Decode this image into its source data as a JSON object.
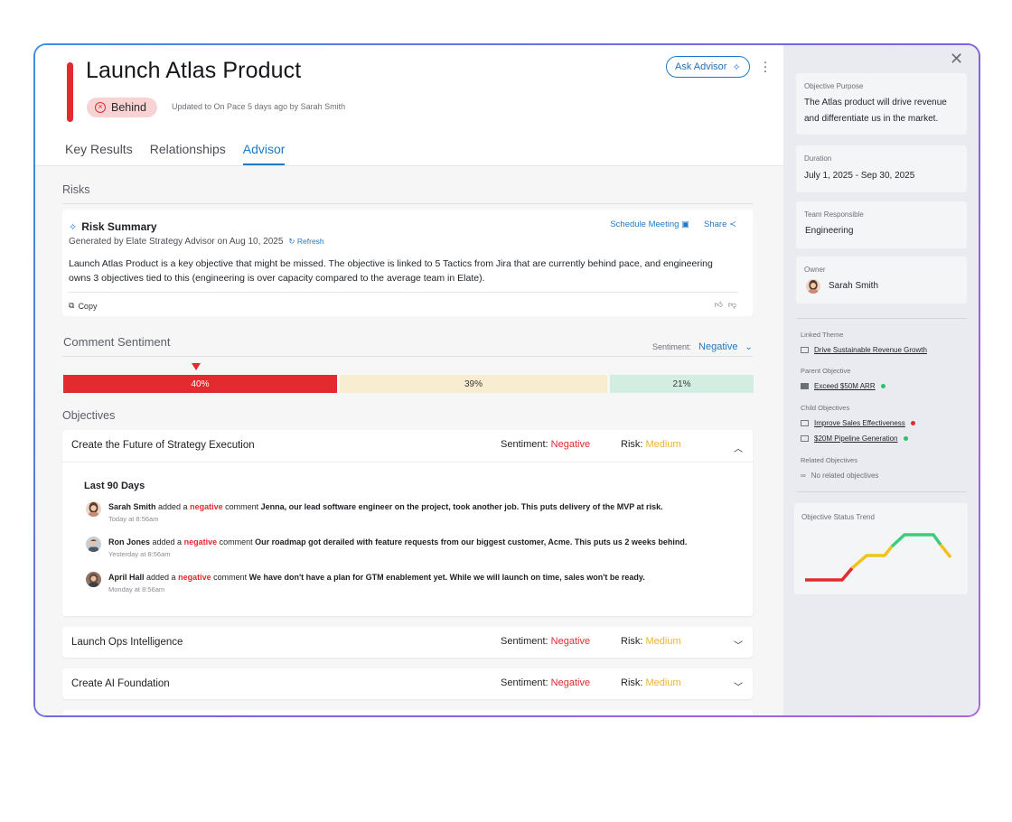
{
  "header": {
    "title": "Launch Atlas Product",
    "status": "Behind",
    "updated": "Updated to On Pace 5 days ago by Sarah Smith",
    "ask_advisor": "Ask Advisor"
  },
  "tabs": [
    {
      "label": "Key Results",
      "active": false
    },
    {
      "label": "Relationships",
      "active": false
    },
    {
      "label": "Advisor",
      "active": true
    }
  ],
  "risks": {
    "section_label": "Risks",
    "title": "Risk Summary",
    "generated": "Generated by Elate Strategy Advisor on Aug 10, 2025",
    "refresh": "Refresh",
    "schedule": "Schedule Meeting",
    "share": "Share",
    "body": "Launch Atlas Product is a key objective that might be missed. The objective is linked to 5 Tactics from Jira that are currently behind pace, and engineering owns 3 objectives tied to this (engineering is over capacity compared to the average team in Elate).",
    "copy": "Copy"
  },
  "sentiment": {
    "section_label": "Comment Sentiment",
    "dropdown_label": "Sentiment:",
    "dropdown_value": "Negative",
    "bars": [
      {
        "label": "40%",
        "value": 40,
        "color": "#e32a2f"
      },
      {
        "label": "39%",
        "value": 39,
        "color": "#f8ecd1"
      },
      {
        "label": "21%",
        "value": 21,
        "color": "#d4ede3"
      }
    ]
  },
  "objectives": {
    "section_label": "Objectives",
    "sentiment_label": "Sentiment:",
    "risk_label": "Risk:",
    "items": [
      {
        "name": "Create the Future of Strategy Execution",
        "sentiment": "Negative",
        "risk": "Medium",
        "expanded": true,
        "period": "Last 90 Days",
        "comments": [
          {
            "name": "Sarah Smith",
            "verb": "added a",
            "sentiment": "negative",
            "noun": "comment",
            "text": "Jenna, our lead software engineer on the project, took another job. This puts delivery of the MVP at risk.",
            "time": "Today at 8:56am"
          },
          {
            "name": "Ron Jones",
            "verb": "added a",
            "sentiment": "negative",
            "noun": "comment",
            "text": "Our roadmap got derailed with feature requests from our biggest customer, Acme. This puts us 2 weeks behind.",
            "time": "Yesterday at 8:56am"
          },
          {
            "name": "April Hall",
            "verb": "added a",
            "sentiment": "negative",
            "noun": "comment",
            "text": "We have don't have a plan for GTM enablement yet. While we will launch on time, sales won't be ready.",
            "time": "Monday at 8:56am"
          }
        ]
      },
      {
        "name": "Launch Ops Intelligence",
        "sentiment": "Negative",
        "risk": "Medium",
        "expanded": false
      },
      {
        "name": "Create AI Foundation",
        "sentiment": "Negative",
        "risk": "Medium",
        "expanded": false
      }
    ]
  },
  "sidebar": {
    "purpose_label": "Objective Purpose",
    "purpose": "The Atlas product will drive revenue and differentiate us in the market.",
    "duration_label": "Duration",
    "duration": "July 1, 2025 - Sep 30, 2025",
    "team_label": "Team Responsible",
    "team": "Engineering",
    "owner_label": "Owner",
    "owner": "Sarah Smith",
    "linked_theme_label": "Linked Theme",
    "linked_theme": "Drive Sustainable Revenue Growth",
    "parent_label": "Parent Objective",
    "parent": {
      "name": "Exceed $50M ARR",
      "status_color": "#2fbf6a"
    },
    "child_label": "Child Objectives",
    "children": [
      {
        "name": "Improve Sales Effectiveness",
        "status_color": "#e32a2f"
      },
      {
        "name": "$20M Pipeline Generation",
        "status_color": "#2fbf6a"
      }
    ],
    "related_label": "Related Objectives",
    "related": "No related objectives",
    "trend_label": "Objective Status Trend"
  },
  "colors": {
    "accent": "#1e7ac8",
    "negative": "#e32a2f",
    "medium": "#e8b52c",
    "positive": "#2fbf6a"
  },
  "icons": [
    "close-icon",
    "sparkle-icon",
    "calendar-icon",
    "share-icon",
    "refresh-icon",
    "copy-icon",
    "thumbs-up-icon",
    "thumbs-down-icon",
    "chevron-down-icon",
    "chevron-up-icon",
    "kebab-icon",
    "link-icon"
  ]
}
